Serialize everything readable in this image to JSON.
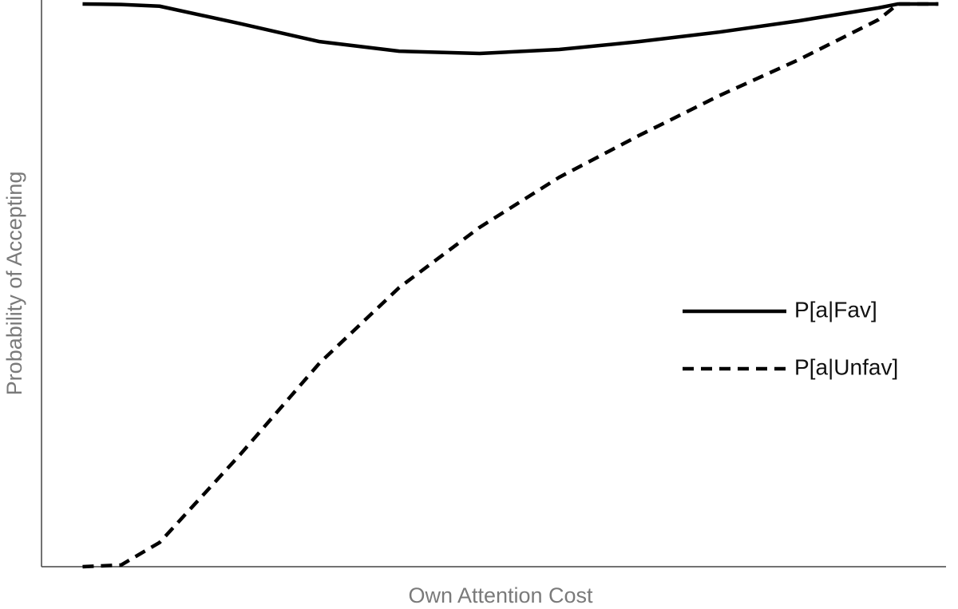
{
  "chart_data": {
    "type": "line",
    "x_label": "Own Attention Cost",
    "y_label": "Probability of Accepting",
    "x": [
      0,
      0.045,
      0.09,
      0.184,
      0.277,
      0.37,
      0.464,
      0.557,
      0.65,
      0.744,
      0.837,
      0.93,
      0.953,
      1.0
    ],
    "series": [
      {
        "name": "P[a|Fav]",
        "color": "#000000",
        "style": "solid",
        "values": [
          1.0,
          0.999,
          0.996,
          0.965,
          0.933,
          0.916,
          0.912,
          0.919,
          0.933,
          0.95,
          0.97,
          0.993,
          1.0,
          1.0
        ]
      },
      {
        "name": "P[a|Unfav]",
        "color": "#000000",
        "style": "dashed",
        "values": [
          0,
          0.003,
          0.043,
          0.199,
          0.362,
          0.496,
          0.603,
          0.692,
          0.766,
          0.837,
          0.901,
          0.972,
          1.0,
          1.0
        ]
      }
    ],
    "xlim": [
      -0.048,
      1.009
    ],
    "ylim": [
      0,
      1.007
    ],
    "legend": "right"
  }
}
